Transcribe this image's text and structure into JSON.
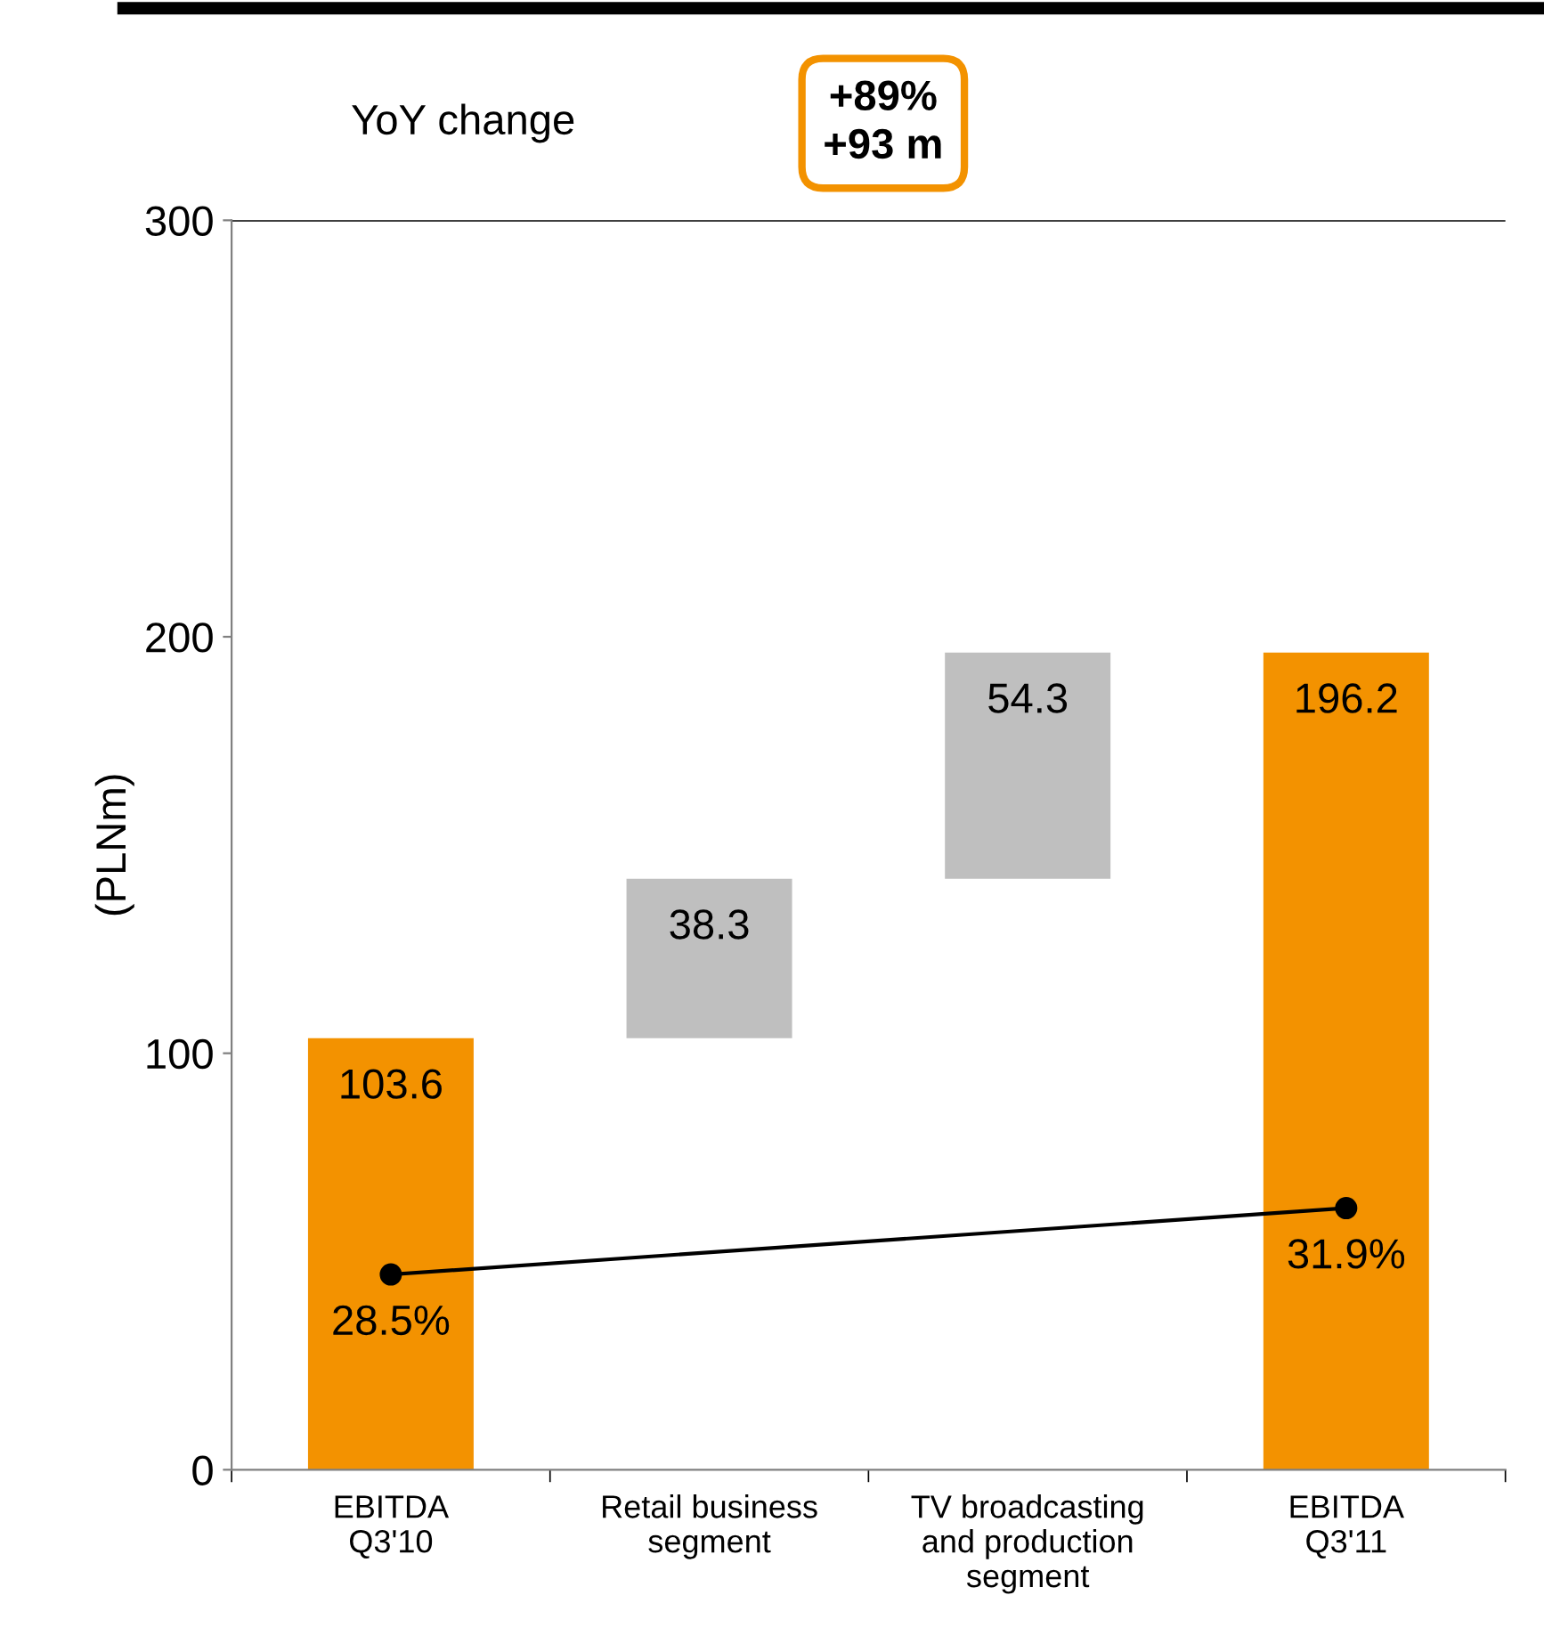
{
  "chart_data": {
    "type": "bar",
    "ylabel": "(PLNm)",
    "categories": [
      "EBITDA\nQ3'10",
      "Retail business\nsegment",
      "TV broadcasting\nand production\nsegment",
      "EBITDA\nQ3'11"
    ],
    "series": [
      {
        "values": [
          103.6,
          38.3,
          54.3,
          196.2
        ],
        "base": [
          0,
          103.6,
          141.9,
          0
        ],
        "colors": [
          "#f39200",
          "#bfbfbf",
          "#bfbfbf",
          "#f39200"
        ],
        "data_labels": true
      },
      {
        "type": "line",
        "axis": "y2",
        "color": "#000000",
        "marker": "circle",
        "values": [
          28.5,
          null,
          null,
          31.9
        ],
        "value_labels": [
          "28.5%",
          null,
          null,
          "31.9%"
        ]
      }
    ],
    "ylim": [
      0,
      300
    ],
    "yticks": [
      0,
      100,
      200,
      300
    ],
    "y2lim": [
      18.5,
      82.5
    ],
    "ref_lines": [
      {
        "axis": "y",
        "value": 300,
        "color": "#000000"
      }
    ],
    "annotations": [
      "YoY change",
      "+89%\n+93 m"
    ],
    "grid": false,
    "legend": false
  }
}
